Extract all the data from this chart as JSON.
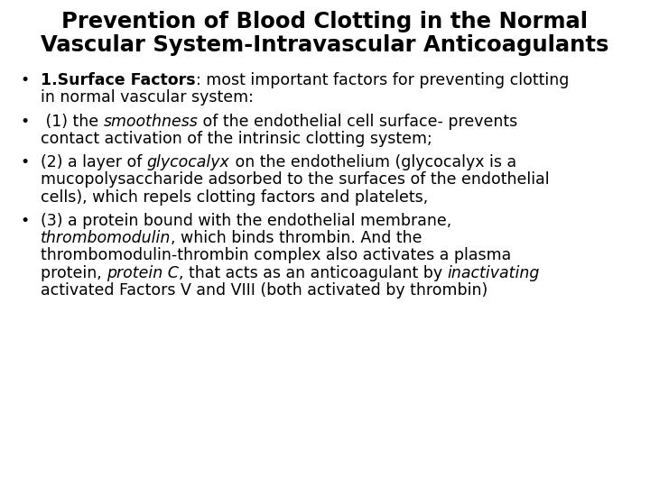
{
  "title_line1": "Prevention of Blood Clotting in the Normal",
  "title_line2": "Vascular System-Intravascular Anticoagulants",
  "background_color": "#ffffff",
  "text_color": "#000000",
  "title_fontsize": 17.5,
  "body_fontsize": 12.5,
  "bullet_char": "•",
  "bullet_points": [
    {
      "segments": [
        {
          "text": "1.Surface Factors",
          "bold": true,
          "italic": false
        },
        {
          "text": ": most important factors for preventing clotting\nin normal vascular system:",
          "bold": false,
          "italic": false
        }
      ]
    },
    {
      "segments": [
        {
          "text": " (1) the ",
          "bold": false,
          "italic": false
        },
        {
          "text": "smoothness",
          "bold": false,
          "italic": true
        },
        {
          "text": " of the endothelial cell surface- prevents\ncontact activation of the intrinsic clotting system;",
          "bold": false,
          "italic": false
        }
      ]
    },
    {
      "segments": [
        {
          "text": "(2) a layer of ",
          "bold": false,
          "italic": false
        },
        {
          "text": "glycocalyx",
          "bold": false,
          "italic": true
        },
        {
          "text": " on the endothelium (glycocalyx is a\nmucopolysaccharide adsorbed to the surfaces of the endothelial\ncells), which repels clotting factors and platelets,",
          "bold": false,
          "italic": false
        }
      ]
    },
    {
      "segments": [
        {
          "text": "(3) a protein bound with the endothelial membrane,\n",
          "bold": false,
          "italic": false
        },
        {
          "text": "thrombomodulin",
          "bold": false,
          "italic": true
        },
        {
          "text": ", which binds thrombin. And the\nthrombomodulin-thrombin complex also activates a plasma\nprotein, ",
          "bold": false,
          "italic": false
        },
        {
          "text": "protein C",
          "bold": false,
          "italic": true
        },
        {
          "text": ", that acts as an anticoagulant by ",
          "bold": false,
          "italic": false
        },
        {
          "text": "inactivating",
          "bold": false,
          "italic": true
        },
        {
          "text": "\nactivated Factors V and VIII (both activated by thrombin)",
          "bold": false,
          "italic": false
        }
      ]
    }
  ]
}
